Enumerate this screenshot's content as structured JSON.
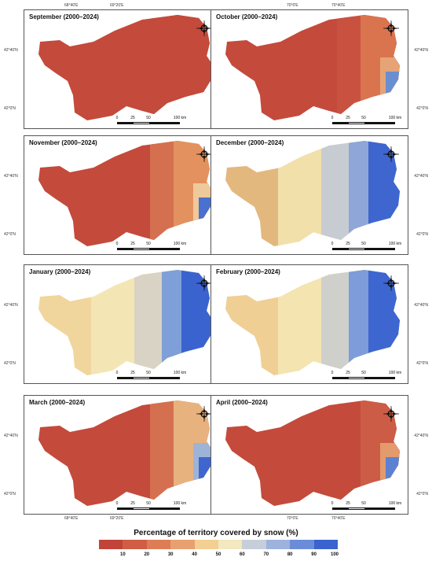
{
  "axis": {
    "lon_labels": [
      "68°40'E",
      "69°20'E",
      "70°0'E",
      "70°40'E"
    ],
    "lat_labels": [
      "42°40'N",
      "42°0'N"
    ]
  },
  "panels": [
    {
      "title": "September (2000–2024)",
      "colors": [
        "#c44a3c",
        "#c44a3c",
        "#c44a3c",
        "#c44a3c",
        "#c44a3c"
      ]
    },
    {
      "title": "October (2000–2024)",
      "colors": [
        "#c44a3c",
        "#c8523f",
        "#d9744f",
        "#e6a476",
        "#6a8fd0"
      ]
    },
    {
      "title": "November (2000–2024)",
      "colors": [
        "#c44a3c",
        "#d4704f",
        "#e3925f",
        "#efc99a",
        "#4a70d0"
      ]
    },
    {
      "title": "December (2000–2024)",
      "colors": [
        "#e3b87e",
        "#f2e0aa",
        "#c7ccd3",
        "#8ea7d8",
        "#3f66cf"
      ]
    },
    {
      "title": "January (2000–2024)",
      "colors": [
        "#f0d59c",
        "#f3e6b4",
        "#d8d3c4",
        "#7f9fd9",
        "#3a63cf"
      ]
    },
    {
      "title": "February (2000–2024)",
      "colors": [
        "#efcf94",
        "#f3e4b0",
        "#cfd0cc",
        "#7d9cd9",
        "#3d66d0"
      ]
    },
    {
      "title": "March (2000–2024)",
      "colors": [
        "#c44a3c",
        "#d4704f",
        "#e8b27f",
        "#9eb4d6",
        "#3f66cf"
      ]
    },
    {
      "title": "April (2000–2024)",
      "colors": [
        "#c44a3c",
        "#c44a3c",
        "#cc5c45",
        "#e39a6c",
        "#5b82d2"
      ]
    }
  ],
  "scale": {
    "labels": [
      "0",
      "25",
      "50",
      "100 km"
    ]
  },
  "north_icon": "compass-rose-icon",
  "legend": {
    "title": "Percentage of territory covered by snow (%)",
    "colors": [
      "#c1443a",
      "#cf5e45",
      "#dc7d55",
      "#e9a070",
      "#f3cf93",
      "#f3e8bf",
      "#c5ced9",
      "#9db3de",
      "#6b8dd9",
      "#3a63cf"
    ],
    "ticks": [
      "10",
      "20",
      "30",
      "40",
      "50",
      "60",
      "70",
      "80",
      "90",
      "100"
    ]
  }
}
